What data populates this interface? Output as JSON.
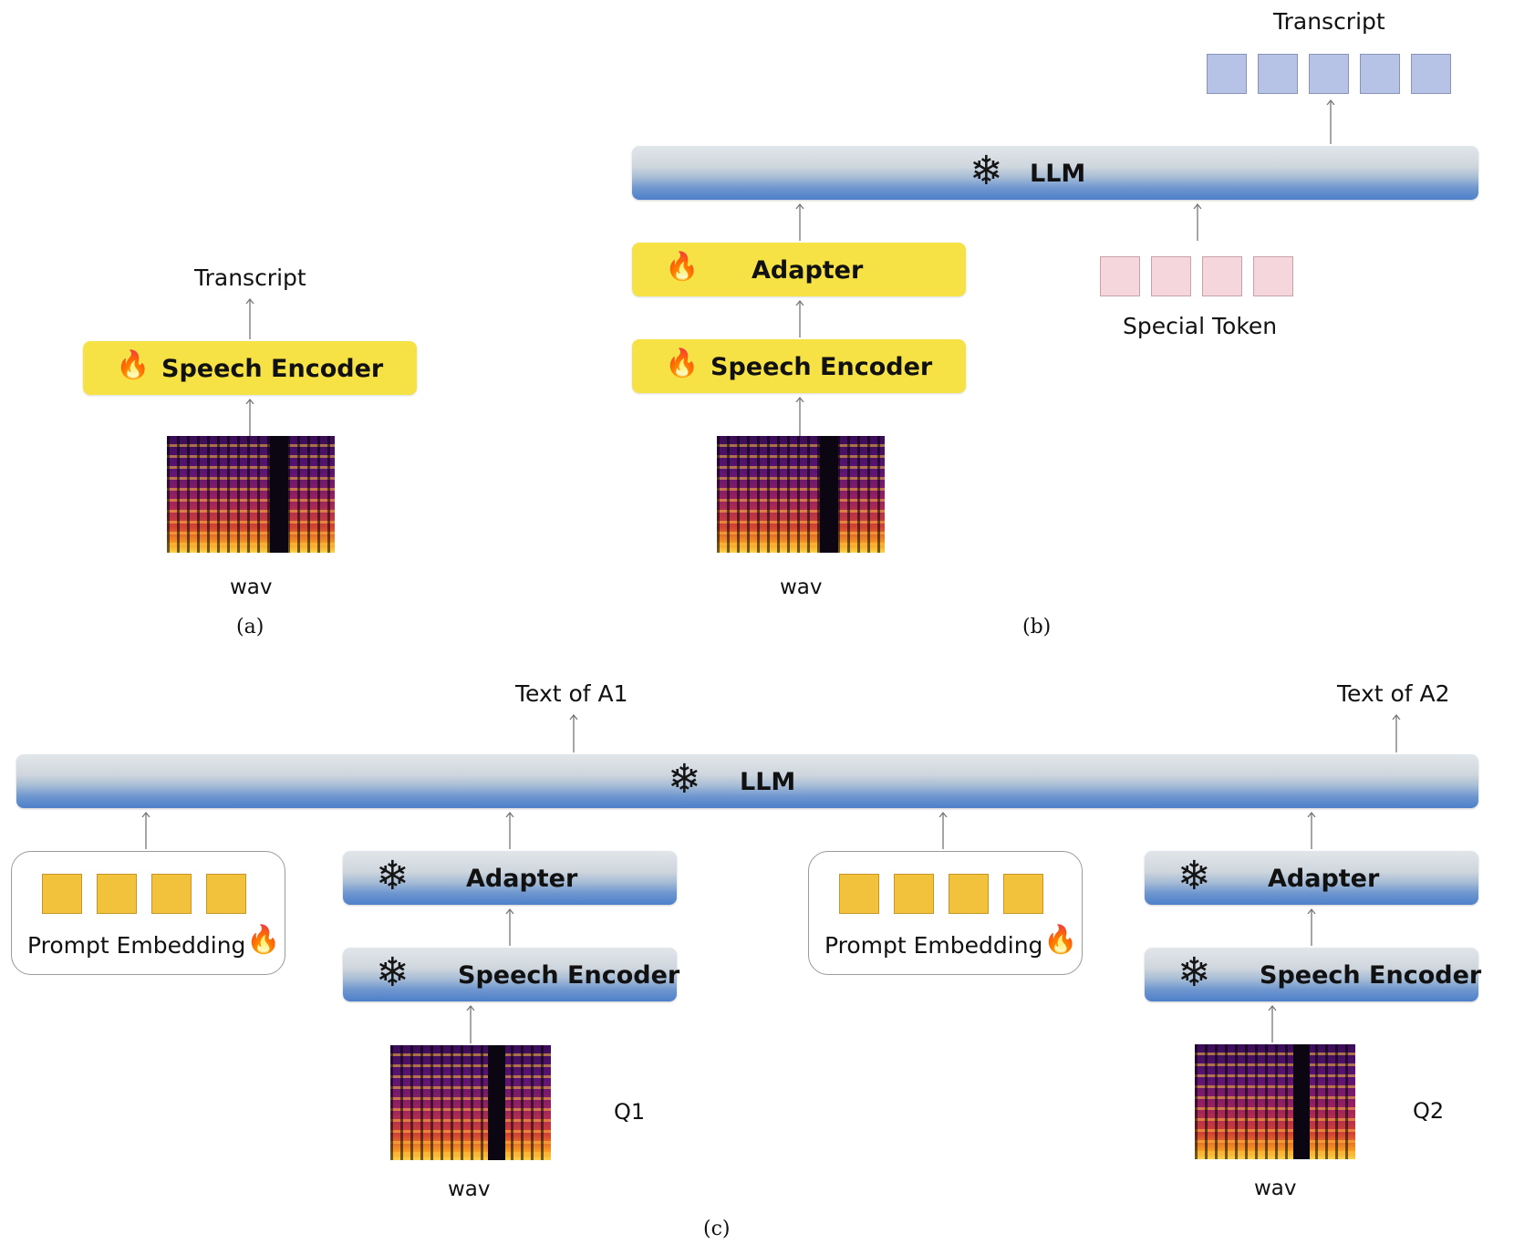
{
  "panel_a": {
    "output_label": "Transcript",
    "encoder_label": "Speech Encoder",
    "input_label": "wav",
    "caption": "(a)"
  },
  "panel_b": {
    "output_label": "Transcript",
    "llm_label": "LLM",
    "adapter_label": "Adapter",
    "encoder_label": "Speech Encoder",
    "input_label": "wav",
    "special_token_label": "Special Token",
    "caption": "(b)"
  },
  "panel_c": {
    "output_a1": "Text of A1",
    "output_a2": "Text of A2",
    "llm_label": "LLM",
    "prompt_label_1": "Prompt Embedding",
    "prompt_label_2": "Prompt Embedding",
    "adapter_label_1": "Adapter",
    "adapter_label_2": "Adapter",
    "encoder_label_1": "Speech Encoder",
    "encoder_label_2": "Speech Encoder",
    "input_label_1": "wav",
    "input_label_2": "wav",
    "question_1": "Q1",
    "question_2": "Q2",
    "caption": "(c)"
  },
  "icons": {
    "trainable": "fire-icon",
    "frozen": "snowflake-icon"
  },
  "colors": {
    "trainable_box": "#f6e244",
    "frozen_box": "#6f97cf",
    "output_token": "#b7c3e6",
    "special_token": "#f6d6dd",
    "prompt_token": "#f3c23c"
  }
}
